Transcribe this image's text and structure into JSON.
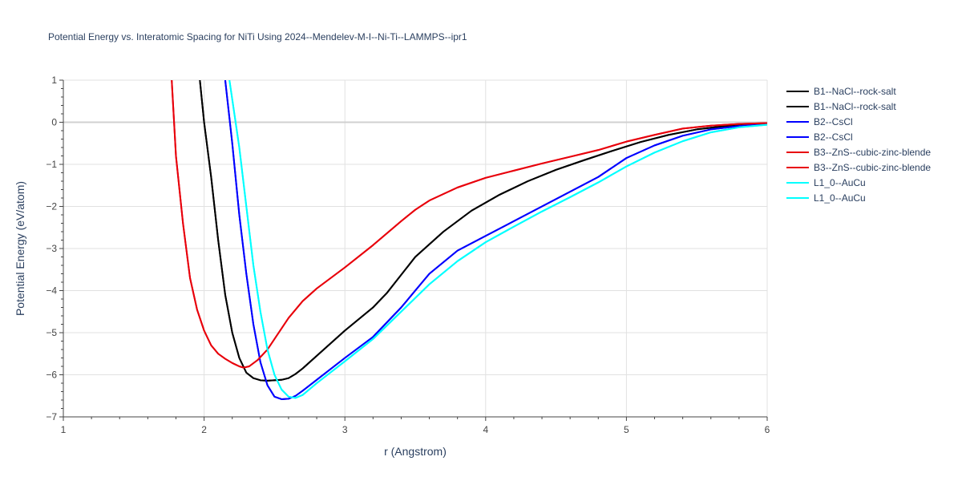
{
  "chart_data": {
    "type": "line",
    "title": "Potential Energy vs. Interatomic Spacing for NiTi Using 2024--Mendelev-M-I--Ni-Ti--LAMMPS--ipr1",
    "xlabel": "r (Angstrom)",
    "ylabel": "Potential Energy (eV/atom)",
    "xlim": [
      1,
      6
    ],
    "ylim": [
      -7,
      1
    ],
    "x_ticks": [
      "1",
      "2",
      "3",
      "4",
      "5",
      "6"
    ],
    "y_ticks": [
      "1",
      "0",
      "−1",
      "−2",
      "−3",
      "−4",
      "−5",
      "−6",
      "−7"
    ],
    "grid": true,
    "legend_position": "right",
    "series": [
      {
        "name": "B1--NaCl--rock-salt",
        "color": "#000000",
        "points": [
          [
            1.97,
            1.0
          ],
          [
            2.0,
            0.0
          ],
          [
            2.05,
            -1.3
          ],
          [
            2.1,
            -2.8
          ],
          [
            2.15,
            -4.1
          ],
          [
            2.2,
            -5.0
          ],
          [
            2.25,
            -5.6
          ],
          [
            2.3,
            -5.95
          ],
          [
            2.35,
            -6.08
          ],
          [
            2.4,
            -6.13
          ],
          [
            2.45,
            -6.14
          ],
          [
            2.55,
            -6.12
          ],
          [
            2.6,
            -6.08
          ],
          [
            2.65,
            -5.98
          ],
          [
            2.7,
            -5.85
          ],
          [
            2.8,
            -5.55
          ],
          [
            3.0,
            -4.95
          ],
          [
            3.2,
            -4.4
          ],
          [
            3.3,
            -4.05
          ],
          [
            3.5,
            -3.2
          ],
          [
            3.7,
            -2.6
          ],
          [
            3.9,
            -2.1
          ],
          [
            4.1,
            -1.72
          ],
          [
            4.3,
            -1.4
          ],
          [
            4.5,
            -1.13
          ],
          [
            4.7,
            -0.9
          ],
          [
            4.9,
            -0.68
          ],
          [
            5.1,
            -0.47
          ],
          [
            5.3,
            -0.3
          ],
          [
            5.5,
            -0.17
          ],
          [
            5.7,
            -0.09
          ],
          [
            5.9,
            -0.05
          ],
          [
            6.0,
            -0.03
          ]
        ]
      },
      {
        "name": "B1--NaCl--rock-salt",
        "color": "#000000",
        "points": [
          [
            1.97,
            1.0
          ],
          [
            2.0,
            0.0
          ],
          [
            2.05,
            -1.3
          ],
          [
            2.1,
            -2.8
          ],
          [
            2.15,
            -4.1
          ],
          [
            2.2,
            -5.0
          ],
          [
            2.25,
            -5.6
          ],
          [
            2.3,
            -5.95
          ],
          [
            2.35,
            -6.08
          ],
          [
            2.4,
            -6.13
          ],
          [
            2.45,
            -6.14
          ],
          [
            2.55,
            -6.12
          ],
          [
            2.6,
            -6.08
          ],
          [
            2.65,
            -5.98
          ],
          [
            2.7,
            -5.85
          ],
          [
            2.8,
            -5.55
          ],
          [
            3.0,
            -4.95
          ],
          [
            3.2,
            -4.4
          ],
          [
            3.3,
            -4.05
          ],
          [
            3.5,
            -3.2
          ],
          [
            3.7,
            -2.6
          ],
          [
            3.9,
            -2.1
          ],
          [
            4.1,
            -1.72
          ],
          [
            4.3,
            -1.4
          ],
          [
            4.5,
            -1.13
          ],
          [
            4.7,
            -0.9
          ],
          [
            4.9,
            -0.68
          ],
          [
            5.1,
            -0.47
          ],
          [
            5.3,
            -0.3
          ],
          [
            5.5,
            -0.17
          ],
          [
            5.7,
            -0.09
          ],
          [
            5.9,
            -0.05
          ],
          [
            6.0,
            -0.03
          ]
        ]
      },
      {
        "name": "B2--CsCl",
        "color": "#0000ff",
        "points": [
          [
            2.15,
            1.0
          ],
          [
            2.2,
            -0.5
          ],
          [
            2.25,
            -2.2
          ],
          [
            2.3,
            -3.6
          ],
          [
            2.35,
            -4.8
          ],
          [
            2.4,
            -5.7
          ],
          [
            2.45,
            -6.25
          ],
          [
            2.5,
            -6.52
          ],
          [
            2.55,
            -6.58
          ],
          [
            2.6,
            -6.57
          ],
          [
            2.65,
            -6.5
          ],
          [
            2.7,
            -6.38
          ],
          [
            2.8,
            -6.12
          ],
          [
            3.0,
            -5.6
          ],
          [
            3.2,
            -5.1
          ],
          [
            3.4,
            -4.4
          ],
          [
            3.6,
            -3.6
          ],
          [
            3.8,
            -3.05
          ],
          [
            4.0,
            -2.7
          ],
          [
            4.2,
            -2.35
          ],
          [
            4.4,
            -2.0
          ],
          [
            4.6,
            -1.65
          ],
          [
            4.8,
            -1.3
          ],
          [
            5.0,
            -0.85
          ],
          [
            5.2,
            -0.55
          ],
          [
            5.4,
            -0.32
          ],
          [
            5.6,
            -0.17
          ],
          [
            5.8,
            -0.09
          ],
          [
            6.0,
            -0.04
          ]
        ]
      },
      {
        "name": "B2--CsCl",
        "color": "#0000ff",
        "points": [
          [
            2.15,
            1.0
          ],
          [
            2.2,
            -0.5
          ],
          [
            2.25,
            -2.2
          ],
          [
            2.3,
            -3.6
          ],
          [
            2.35,
            -4.8
          ],
          [
            2.4,
            -5.7
          ],
          [
            2.45,
            -6.25
          ],
          [
            2.5,
            -6.52
          ],
          [
            2.55,
            -6.58
          ],
          [
            2.6,
            -6.57
          ],
          [
            2.65,
            -6.5
          ],
          [
            2.7,
            -6.38
          ],
          [
            2.8,
            -6.12
          ],
          [
            3.0,
            -5.6
          ],
          [
            3.2,
            -5.1
          ],
          [
            3.4,
            -4.4
          ],
          [
            3.6,
            -3.6
          ],
          [
            3.8,
            -3.05
          ],
          [
            4.0,
            -2.7
          ],
          [
            4.2,
            -2.35
          ],
          [
            4.4,
            -2.0
          ],
          [
            4.6,
            -1.65
          ],
          [
            4.8,
            -1.3
          ],
          [
            5.0,
            -0.85
          ],
          [
            5.2,
            -0.55
          ],
          [
            5.4,
            -0.32
          ],
          [
            5.6,
            -0.17
          ],
          [
            5.8,
            -0.09
          ],
          [
            6.0,
            -0.04
          ]
        ]
      },
      {
        "name": "B3--ZnS--cubic-zinc-blende",
        "color": "#e8000b",
        "points": [
          [
            1.77,
            1.0
          ],
          [
            1.8,
            -0.8
          ],
          [
            1.85,
            -2.4
          ],
          [
            1.9,
            -3.7
          ],
          [
            1.95,
            -4.45
          ],
          [
            2.0,
            -4.95
          ],
          [
            2.05,
            -5.3
          ],
          [
            2.1,
            -5.5
          ],
          [
            2.15,
            -5.62
          ],
          [
            2.2,
            -5.72
          ],
          [
            2.25,
            -5.8
          ],
          [
            2.28,
            -5.83
          ],
          [
            2.32,
            -5.8
          ],
          [
            2.38,
            -5.65
          ],
          [
            2.45,
            -5.4
          ],
          [
            2.5,
            -5.15
          ],
          [
            2.6,
            -4.65
          ],
          [
            2.7,
            -4.25
          ],
          [
            2.8,
            -3.95
          ],
          [
            3.0,
            -3.45
          ],
          [
            3.2,
            -2.92
          ],
          [
            3.4,
            -2.35
          ],
          [
            3.5,
            -2.08
          ],
          [
            3.6,
            -1.86
          ],
          [
            3.8,
            -1.55
          ],
          [
            4.0,
            -1.32
          ],
          [
            4.2,
            -1.15
          ],
          [
            4.4,
            -0.98
          ],
          [
            4.6,
            -0.82
          ],
          [
            4.8,
            -0.66
          ],
          [
            5.0,
            -0.46
          ],
          [
            5.2,
            -0.3
          ],
          [
            5.4,
            -0.15
          ],
          [
            5.6,
            -0.08
          ],
          [
            5.8,
            -0.04
          ],
          [
            6.0,
            -0.02
          ]
        ]
      },
      {
        "name": "B3--ZnS--cubic-zinc-blende",
        "color": "#e8000b",
        "points": [
          [
            1.77,
            1.0
          ],
          [
            1.8,
            -0.8
          ],
          [
            1.85,
            -2.4
          ],
          [
            1.9,
            -3.7
          ],
          [
            1.95,
            -4.45
          ],
          [
            2.0,
            -4.95
          ],
          [
            2.05,
            -5.3
          ],
          [
            2.1,
            -5.5
          ],
          [
            2.15,
            -5.62
          ],
          [
            2.2,
            -5.72
          ],
          [
            2.25,
            -5.8
          ],
          [
            2.28,
            -5.83
          ],
          [
            2.32,
            -5.8
          ],
          [
            2.38,
            -5.65
          ],
          [
            2.45,
            -5.4
          ],
          [
            2.5,
            -5.15
          ],
          [
            2.6,
            -4.65
          ],
          [
            2.7,
            -4.25
          ],
          [
            2.8,
            -3.95
          ],
          [
            3.0,
            -3.45
          ],
          [
            3.2,
            -2.92
          ],
          [
            3.4,
            -2.35
          ],
          [
            3.5,
            -2.08
          ],
          [
            3.6,
            -1.86
          ],
          [
            3.8,
            -1.55
          ],
          [
            4.0,
            -1.32
          ],
          [
            4.2,
            -1.15
          ],
          [
            4.4,
            -0.98
          ],
          [
            4.6,
            -0.82
          ],
          [
            4.8,
            -0.66
          ],
          [
            5.0,
            -0.46
          ],
          [
            5.2,
            -0.3
          ],
          [
            5.4,
            -0.15
          ],
          [
            5.6,
            -0.08
          ],
          [
            5.8,
            -0.04
          ],
          [
            6.0,
            -0.02
          ]
        ]
      },
      {
        "name": "L1_0--AuCu",
        "color": "#00ffff",
        "points": [
          [
            2.18,
            1.0
          ],
          [
            2.25,
            -0.6
          ],
          [
            2.3,
            -2.0
          ],
          [
            2.35,
            -3.4
          ],
          [
            2.4,
            -4.5
          ],
          [
            2.45,
            -5.4
          ],
          [
            2.5,
            -6.0
          ],
          [
            2.55,
            -6.35
          ],
          [
            2.6,
            -6.52
          ],
          [
            2.65,
            -6.55
          ],
          [
            2.7,
            -6.48
          ],
          [
            2.8,
            -6.2
          ],
          [
            3.0,
            -5.68
          ],
          [
            3.2,
            -5.15
          ],
          [
            3.4,
            -4.5
          ],
          [
            3.6,
            -3.85
          ],
          [
            3.8,
            -3.3
          ],
          [
            4.0,
            -2.85
          ],
          [
            4.2,
            -2.48
          ],
          [
            4.4,
            -2.12
          ],
          [
            4.6,
            -1.78
          ],
          [
            4.8,
            -1.43
          ],
          [
            5.0,
            -1.05
          ],
          [
            5.2,
            -0.72
          ],
          [
            5.4,
            -0.45
          ],
          [
            5.6,
            -0.24
          ],
          [
            5.8,
            -0.12
          ],
          [
            6.0,
            -0.06
          ]
        ]
      },
      {
        "name": "L1_0--AuCu",
        "color": "#00ffff",
        "points": [
          [
            2.18,
            1.0
          ],
          [
            2.25,
            -0.6
          ],
          [
            2.3,
            -2.0
          ],
          [
            2.35,
            -3.4
          ],
          [
            2.4,
            -4.5
          ],
          [
            2.45,
            -5.4
          ],
          [
            2.5,
            -6.0
          ],
          [
            2.55,
            -6.35
          ],
          [
            2.6,
            -6.52
          ],
          [
            2.65,
            -6.55
          ],
          [
            2.7,
            -6.48
          ],
          [
            2.8,
            -6.2
          ],
          [
            3.0,
            -5.68
          ],
          [
            3.2,
            -5.15
          ],
          [
            3.4,
            -4.5
          ],
          [
            3.6,
            -3.85
          ],
          [
            3.8,
            -3.3
          ],
          [
            4.0,
            -2.85
          ],
          [
            4.2,
            -2.48
          ],
          [
            4.4,
            -2.12
          ],
          [
            4.6,
            -1.78
          ],
          [
            4.8,
            -1.43
          ],
          [
            5.0,
            -1.05
          ],
          [
            5.2,
            -0.72
          ],
          [
            5.4,
            -0.45
          ],
          [
            5.6,
            -0.24
          ],
          [
            5.8,
            -0.12
          ],
          [
            6.0,
            -0.06
          ]
        ]
      }
    ]
  }
}
